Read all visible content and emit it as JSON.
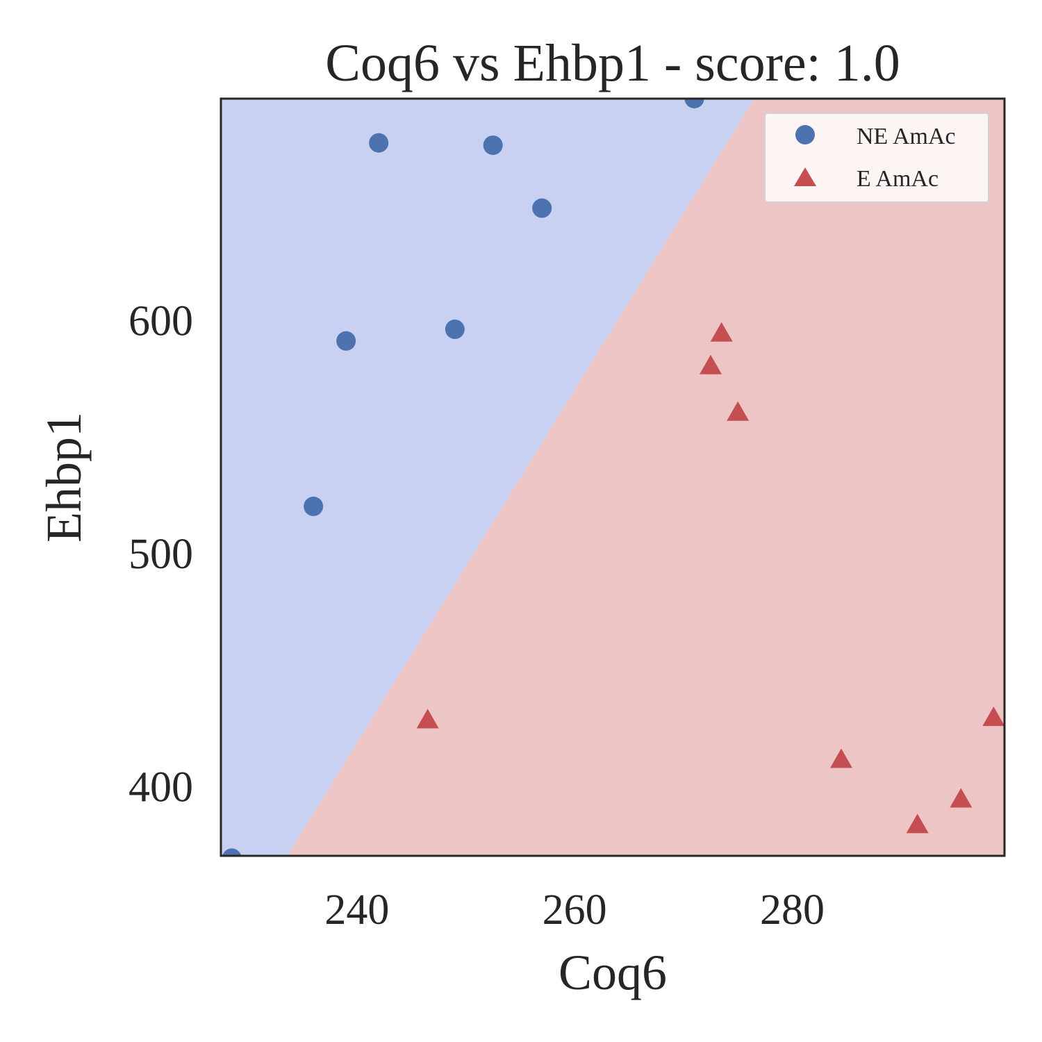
{
  "chart_data": {
    "type": "scatter",
    "title": "Coq6 vs Ehbp1 - score: 1.0",
    "xlabel": "Coq6",
    "ylabel": "Ehbp1",
    "xlim": [
      227.5,
      299.5
    ],
    "ylim": [
      370,
      695
    ],
    "xticks": [
      240,
      260,
      280
    ],
    "yticks": [
      400,
      500,
      600
    ],
    "grid": false,
    "legend_position": "top-right",
    "decision_boundary": {
      "points": [
        [
          233.6,
          370
        ],
        [
          276.5,
          695
        ]
      ],
      "left_class_color": "#c8d1f1",
      "right_class_color": "#eec5c5"
    },
    "series": [
      {
        "name": "NE AmAc",
        "marker": "circle",
        "color": "#4c72b0",
        "points": [
          [
            228.5,
            369
          ],
          [
            236,
            520
          ],
          [
            239,
            591
          ],
          [
            242,
            676
          ],
          [
            249,
            596
          ],
          [
            252.5,
            675
          ],
          [
            257,
            648
          ],
          [
            271,
            695
          ]
        ]
      },
      {
        "name": "E AmAc",
        "marker": "triangle",
        "color": "#c44e52",
        "points": [
          [
            246.5,
            428
          ],
          [
            272.5,
            580
          ],
          [
            273.5,
            594
          ],
          [
            275,
            560
          ],
          [
            284.5,
            411
          ],
          [
            291.5,
            383
          ],
          [
            295.5,
            394
          ],
          [
            298.5,
            429
          ]
        ]
      }
    ]
  }
}
